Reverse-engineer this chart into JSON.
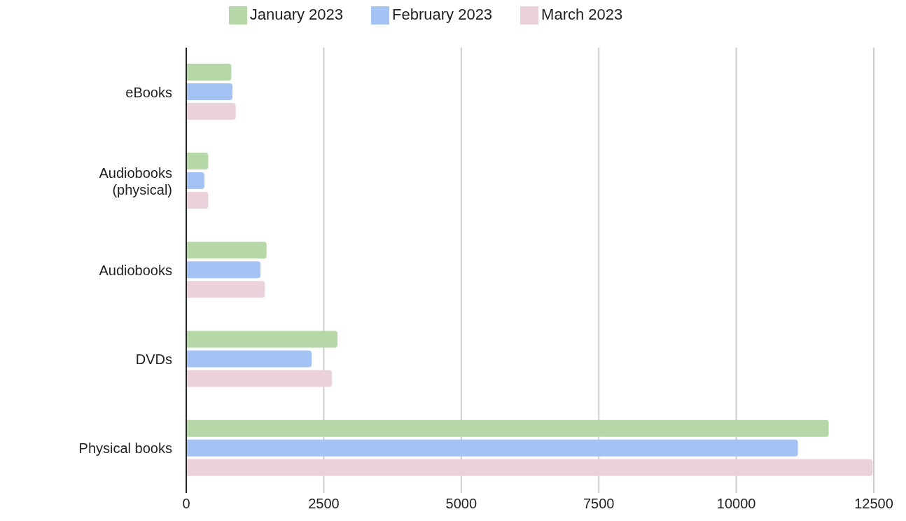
{
  "chart_data": {
    "type": "bar",
    "orientation": "horizontal",
    "categories": [
      "eBooks",
      "Audiobooks (physical)",
      "Audiobooks",
      "DVDs",
      "Physical books"
    ],
    "series": [
      {
        "name": "January 2023",
        "color": "#b6d7a8",
        "values": [
          820,
          400,
          1460,
          2750,
          11680
        ]
      },
      {
        "name": "February 2023",
        "color": "#a4c2f4",
        "values": [
          840,
          330,
          1350,
          2280,
          11120
        ]
      },
      {
        "name": "March 2023",
        "color": "#ead1dc",
        "values": [
          900,
          400,
          1430,
          2650,
          12480
        ]
      }
    ],
    "xlim": [
      0,
      12500
    ],
    "xticks": [
      0,
      2500,
      5000,
      7500,
      10000,
      12500
    ],
    "grid": "x",
    "legend": "top"
  }
}
